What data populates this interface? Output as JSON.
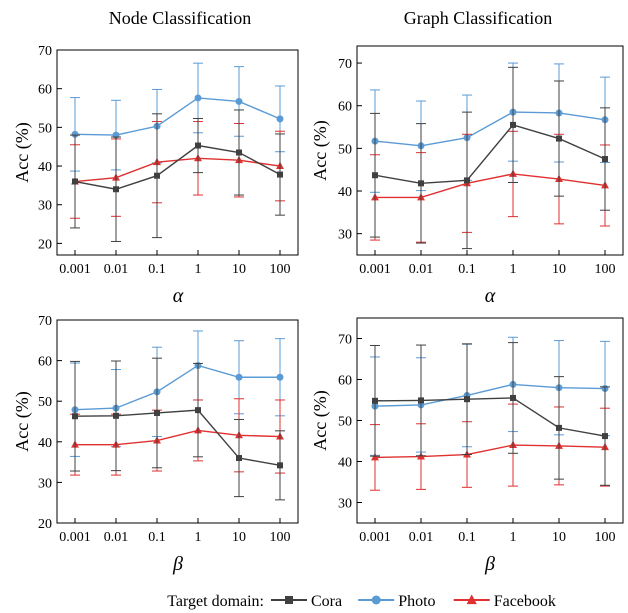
{
  "legend": {
    "title": "Target domain:",
    "entries": [
      {
        "name": "Cora",
        "color": "#404040",
        "marker": "square"
      },
      {
        "name": "Photo",
        "color": "#5b9bd5",
        "marker": "circle"
      },
      {
        "name": "Facebook",
        "color": "#e03030",
        "marker": "triangle"
      }
    ]
  },
  "column_titles": [
    "Node Classification",
    "Graph Classification"
  ],
  "chart_data": [
    {
      "type": "line",
      "title": "Node Classification",
      "xlabel": "α",
      "ylabel": "Acc (%)",
      "categories": [
        "0.001",
        "0.01",
        "0.1",
        "1",
        "10",
        "100"
      ],
      "ylim": [
        17,
        70
      ],
      "yticks": [
        20,
        30,
        40,
        50,
        60,
        70
      ],
      "series": [
        {
          "name": "Cora",
          "values": [
            36.0,
            34.0,
            37.5,
            45.3,
            43.5,
            37.8
          ],
          "err": [
            12.0,
            13.5,
            16.0,
            7.0,
            11.0,
            10.5
          ]
        },
        {
          "name": "Photo",
          "values": [
            48.2,
            48.0,
            50.3,
            57.6,
            56.7,
            52.2
          ],
          "err": [
            9.5,
            9.0,
            9.5,
            9.0,
            9.0,
            8.5
          ]
        },
        {
          "name": "Facebook",
          "values": [
            36.0,
            37.0,
            41.0,
            42.0,
            41.5,
            40.0
          ],
          "err": [
            9.5,
            10.0,
            10.5,
            9.5,
            9.5,
            9.0
          ]
        }
      ]
    },
    {
      "type": "line",
      "title": "Graph Classification",
      "xlabel": "α",
      "ylabel": "Acc (%)",
      "categories": [
        "0.001",
        "0.01",
        "0.1",
        "1",
        "10",
        "100"
      ],
      "ylim": [
        25,
        74
      ],
      "yticks": [
        30,
        40,
        50,
        60,
        70
      ],
      "series": [
        {
          "name": "Cora",
          "values": [
            43.7,
            41.8,
            42.5,
            55.5,
            52.3,
            47.5
          ],
          "err": [
            14.5,
            14.0,
            16.0,
            13.5,
            13.5,
            12.0
          ]
        },
        {
          "name": "Photo",
          "values": [
            51.7,
            50.6,
            52.5,
            58.5,
            58.3,
            56.7
          ],
          "err": [
            12.0,
            10.5,
            10.0,
            11.5,
            11.5,
            10.0
          ]
        },
        {
          "name": "Facebook",
          "values": [
            38.5,
            38.5,
            41.8,
            44.0,
            42.8,
            41.3
          ],
          "err": [
            10.0,
            10.5,
            11.5,
            10.0,
            10.5,
            9.5
          ]
        }
      ]
    },
    {
      "type": "line",
      "title": "",
      "xlabel": "β",
      "ylabel": "Acc (%)",
      "categories": [
        "0.001",
        "0.01",
        "0.1",
        "1",
        "10",
        "100"
      ],
      "ylim": [
        20,
        70
      ],
      "yticks": [
        20,
        30,
        40,
        50,
        60,
        70
      ],
      "series": [
        {
          "name": "Cora",
          "values": [
            46.3,
            46.4,
            47.1,
            47.8,
            36.0,
            34.2
          ],
          "err": [
            13.5,
            13.5,
            13.5,
            11.5,
            9.5,
            8.5
          ]
        },
        {
          "name": "Photo",
          "values": [
            47.9,
            48.3,
            52.3,
            58.8,
            55.9,
            55.9
          ],
          "err": [
            11.5,
            9.5,
            11.0,
            8.5,
            9.0,
            9.5
          ]
        },
        {
          "name": "Facebook",
          "values": [
            39.3,
            39.3,
            40.3,
            42.8,
            41.6,
            41.3
          ],
          "err": [
            7.5,
            7.5,
            7.5,
            7.5,
            9.0,
            9.0
          ]
        }
      ]
    },
    {
      "type": "line",
      "title": "",
      "xlabel": "β",
      "ylabel": "Acc (%)",
      "categories": [
        "0.001",
        "0.01",
        "0.1",
        "1",
        "10",
        "100"
      ],
      "ylim": [
        25,
        75
      ],
      "yticks": [
        30,
        40,
        50,
        60,
        70
      ],
      "series": [
        {
          "name": "Cora",
          "values": [
            54.8,
            54.9,
            55.2,
            55.5,
            48.2,
            46.2
          ],
          "err": [
            13.5,
            13.5,
            13.5,
            13.5,
            12.5,
            12.0
          ]
        },
        {
          "name": "Photo",
          "values": [
            53.5,
            53.8,
            56.1,
            58.8,
            58.0,
            57.8
          ],
          "err": [
            12.0,
            11.5,
            12.5,
            11.5,
            11.5,
            11.5
          ]
        },
        {
          "name": "Facebook",
          "values": [
            41.0,
            41.2,
            41.7,
            44.0,
            43.8,
            43.5
          ],
          "err": [
            8.0,
            8.0,
            8.0,
            10.0,
            9.5,
            9.5
          ]
        }
      ]
    }
  ]
}
